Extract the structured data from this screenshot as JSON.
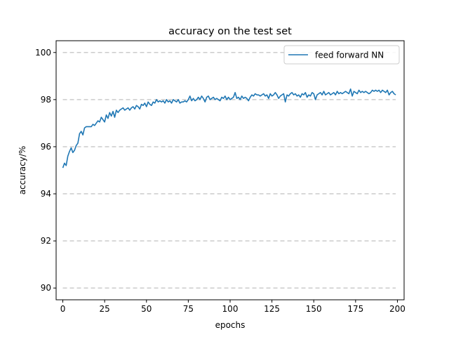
{
  "chart_data": {
    "type": "line",
    "title": "accuracy on the test set",
    "xlabel": "epochs",
    "ylabel": "accuracy/%",
    "xlim": [
      -4,
      204
    ],
    "ylim": [
      89.5,
      100.5
    ],
    "x_ticks": [
      0,
      25,
      50,
      75,
      100,
      125,
      150,
      175,
      200
    ],
    "y_ticks": [
      90,
      92,
      94,
      96,
      98,
      100
    ],
    "grid": "horizontal dashed at y ticks",
    "legend_position": "top-right",
    "colors": {
      "series": "#1f77b4",
      "grid": "#cccccc"
    },
    "series": [
      {
        "name": "feed forward NN",
        "x_start": 0,
        "x_step": 1,
        "values": [
          95.1,
          95.3,
          95.2,
          95.6,
          95.8,
          95.95,
          95.75,
          95.85,
          96.05,
          96.15,
          96.55,
          96.65,
          96.5,
          96.8,
          96.85,
          96.85,
          96.85,
          96.85,
          96.95,
          96.9,
          97.0,
          97.1,
          97.05,
          97.25,
          97.15,
          97.05,
          97.35,
          97.2,
          97.45,
          97.3,
          97.5,
          97.25,
          97.55,
          97.45,
          97.55,
          97.6,
          97.65,
          97.55,
          97.6,
          97.65,
          97.55,
          97.65,
          97.7,
          97.6,
          97.75,
          97.7,
          97.6,
          97.8,
          97.75,
          97.85,
          97.7,
          97.9,
          97.8,
          97.75,
          97.9,
          97.85,
          98.0,
          97.9,
          97.95,
          97.9,
          97.95,
          97.85,
          98.0,
          97.9,
          97.95,
          97.85,
          98.0,
          97.95,
          97.9,
          98.0,
          97.85,
          97.9,
          97.9,
          97.95,
          97.9,
          98.0,
          98.15,
          97.95,
          98.05,
          97.95,
          98.0,
          98.1,
          98.0,
          98.15,
          98.05,
          97.9,
          98.1,
          98.15,
          98.0,
          98.05,
          98.1,
          98.0,
          98.05,
          98.0,
          97.95,
          98.1,
          98.05,
          98.15,
          98.0,
          98.1,
          98.0,
          98.05,
          98.1,
          98.3,
          98.05,
          98.1,
          98.0,
          98.15,
          98.05,
          98.1,
          98.05,
          97.95,
          98.1,
          98.2,
          98.15,
          98.25,
          98.2,
          98.2,
          98.15,
          98.2,
          98.25,
          98.15,
          98.2,
          98.05,
          98.25,
          98.15,
          98.2,
          98.3,
          98.2,
          98.05,
          98.15,
          98.2,
          98.25,
          97.9,
          98.2,
          98.15,
          98.25,
          98.3,
          98.2,
          98.25,
          98.15,
          98.2,
          98.1,
          98.25,
          98.2,
          98.3,
          98.1,
          98.2,
          98.15,
          98.3,
          98.25,
          98.0,
          98.2,
          98.25,
          98.3,
          98.2,
          98.35,
          98.2,
          98.25,
          98.3,
          98.2,
          98.25,
          98.3,
          98.2,
          98.35,
          98.25,
          98.3,
          98.25,
          98.3,
          98.35,
          98.3,
          98.25,
          98.45,
          98.15,
          98.35,
          98.3,
          98.25,
          98.4,
          98.3,
          98.35,
          98.3,
          98.35,
          98.3,
          98.25,
          98.3,
          98.4,
          98.35,
          98.4,
          98.35,
          98.4,
          98.3,
          98.4,
          98.35,
          98.3,
          98.4,
          98.2,
          98.3,
          98.35,
          98.25,
          98.2
        ]
      }
    ]
  }
}
